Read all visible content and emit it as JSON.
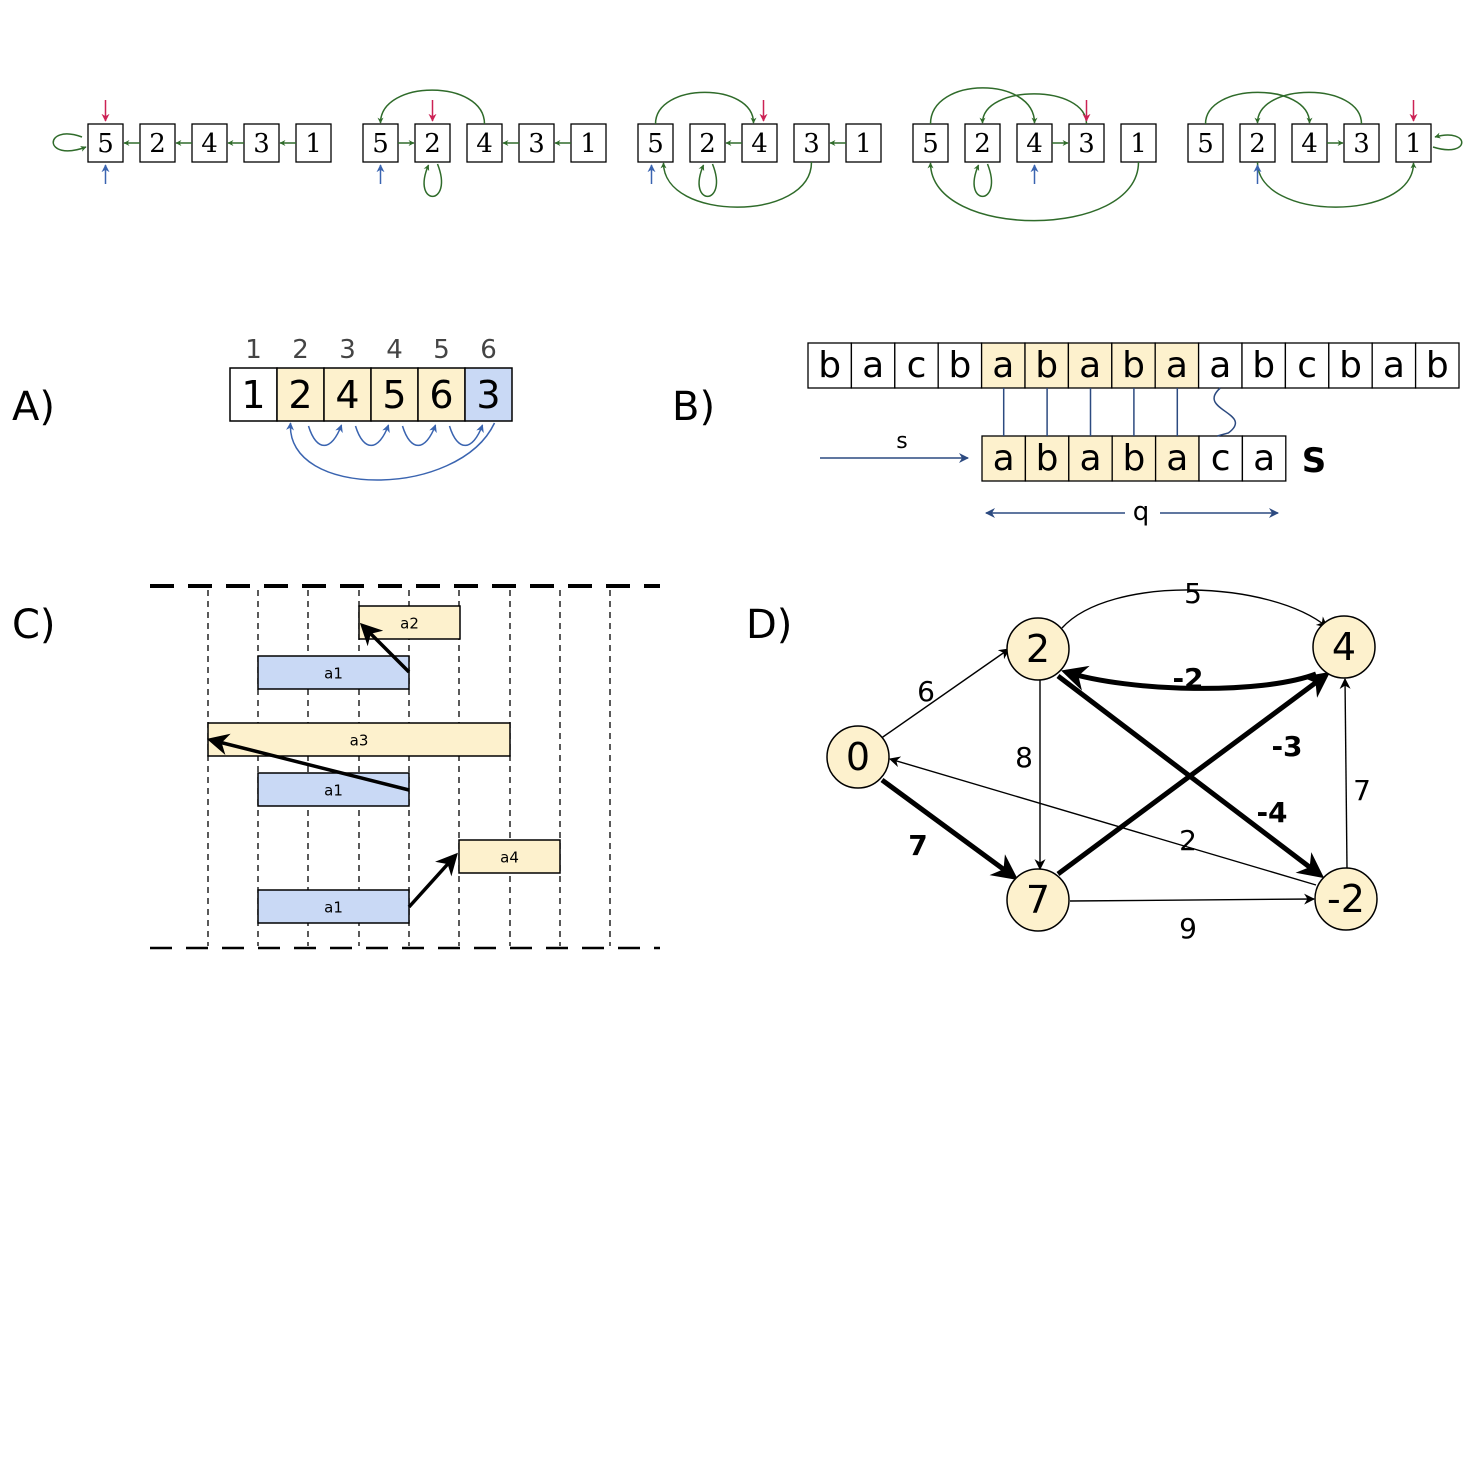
{
  "colors": {
    "green": "#2f6b2a",
    "red": "#cc2255",
    "blue": "#3a64b0",
    "navy": "#2c4a80",
    "yellow": "#fdf1cd",
    "lightblue": "#c9d9f5",
    "black": "#000000"
  },
  "top_row": {
    "states": [
      {
        "labels": [
          "5",
          "2",
          "4",
          "3",
          "1"
        ]
      },
      {
        "labels": [
          "5",
          "2",
          "4",
          "3",
          "1"
        ]
      },
      {
        "labels": [
          "5",
          "2",
          "4",
          "3",
          "1"
        ]
      },
      {
        "labels": [
          "5",
          "2",
          "4",
          "3",
          "1"
        ]
      },
      {
        "labels": [
          "5",
          "2",
          "4",
          "3",
          "1"
        ]
      }
    ]
  },
  "panel_a": {
    "label": "A)",
    "indices": [
      "1",
      "2",
      "3",
      "4",
      "5",
      "6"
    ],
    "values": [
      "1",
      "2",
      "4",
      "5",
      "6",
      "3"
    ],
    "fills": [
      "white",
      "yellow",
      "yellow",
      "yellow",
      "yellow",
      "lightblue"
    ]
  },
  "panel_b": {
    "label": "B)",
    "text": [
      "b",
      "a",
      "c",
      "b",
      "a",
      "b",
      "a",
      "b",
      "a",
      "a",
      "b",
      "c",
      "b",
      "a",
      "b"
    ],
    "text_fills": [
      "white",
      "white",
      "white",
      "white",
      "yellow",
      "yellow",
      "yellow",
      "yellow",
      "yellow",
      "white",
      "white",
      "white",
      "white",
      "white",
      "white"
    ],
    "pattern": [
      "a",
      "b",
      "a",
      "b",
      "a",
      "c",
      "a"
    ],
    "pattern_fills": [
      "yellow",
      "yellow",
      "yellow",
      "yellow",
      "yellow",
      "white",
      "white"
    ],
    "shift_label": "s",
    "length_label": "q",
    "pattern_name": "S"
  },
  "panel_c": {
    "label": "C)",
    "bars": [
      {
        "name": "a2",
        "color": "yellow"
      },
      {
        "name": "a1",
        "color": "lightblue"
      },
      {
        "name": "a3",
        "color": "yellow"
      },
      {
        "name": "a1",
        "color": "lightblue"
      },
      {
        "name": "a4",
        "color": "yellow"
      },
      {
        "name": "a1",
        "color": "lightblue"
      }
    ]
  },
  "panel_d": {
    "label": "D)",
    "nodes": [
      {
        "id": "n0",
        "label": "0"
      },
      {
        "id": "n2",
        "label": "2"
      },
      {
        "id": "n4",
        "label": "4"
      },
      {
        "id": "n7",
        "label": "7"
      },
      {
        "id": "nm2",
        "label": "-2"
      }
    ],
    "edges": [
      {
        "from": "n0",
        "to": "n2",
        "weight": "6",
        "bold": false
      },
      {
        "from": "n0",
        "to": "n7",
        "weight": "7",
        "bold": true
      },
      {
        "from": "n2",
        "to": "n4",
        "weight": "5",
        "bold": false
      },
      {
        "from": "n4",
        "to": "n2",
        "weight": "-2",
        "bold": true
      },
      {
        "from": "n2",
        "to": "n7",
        "weight": "8",
        "bold": false
      },
      {
        "from": "n2",
        "to": "nm2",
        "weight": "-4",
        "bold": true
      },
      {
        "from": "n7",
        "to": "n4",
        "weight": "-3",
        "bold": true
      },
      {
        "from": "nm2",
        "to": "n4",
        "weight": "7",
        "bold": false
      },
      {
        "from": "nm2",
        "to": "n0",
        "weight": "2",
        "bold": false
      },
      {
        "from": "n7",
        "to": "nm2",
        "weight": "9",
        "bold": false
      }
    ]
  }
}
